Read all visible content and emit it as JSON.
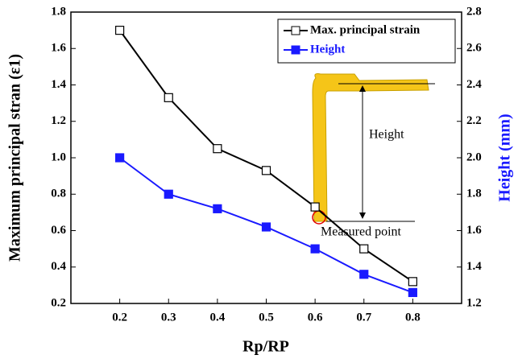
{
  "chart_data": {
    "type": "line",
    "x_label": "Rp/RP",
    "y_label": "Maximum principal stran (ε1)",
    "y2_label": "Height (mm)",
    "x": [
      0.2,
      0.3,
      0.4,
      0.5,
      0.6,
      0.7,
      0.8
    ],
    "xlim": [
      0.1,
      0.9
    ],
    "xticks": [
      0.2,
      0.3,
      0.4,
      0.5,
      0.6,
      0.7,
      0.8
    ],
    "ylim": [
      0.2,
      1.8
    ],
    "yticks": [
      0.2,
      0.4,
      0.6,
      0.8,
      {
        "value": 1,
        "label": "1.0"
      },
      1.2,
      1.4,
      1.6,
      1.8
    ],
    "y2lim": [
      1.2,
      2.8
    ],
    "y2ticks": [
      1.2,
      1.4,
      1.6,
      1.8,
      {
        "value": 2,
        "label": "2.0"
      },
      2.2,
      2.4,
      2.6,
      2.8
    ],
    "series": [
      {
        "name": "Max. principal strain",
        "color": "#000000",
        "marker_fill": "#ffffff",
        "values": [
          1.7,
          1.33,
          1.05,
          0.93,
          0.73,
          0.5,
          0.32
        ]
      },
      {
        "name": "Height",
        "color": "#1a1aff",
        "marker_fill": "#1a1aff",
        "axis": "y2",
        "values": [
          2.0,
          1.8,
          1.72,
          1.62,
          1.5,
          1.36,
          1.26
        ]
      }
    ],
    "annotations": [
      "Height",
      "Measured point"
    ],
    "legend": "upper right"
  }
}
